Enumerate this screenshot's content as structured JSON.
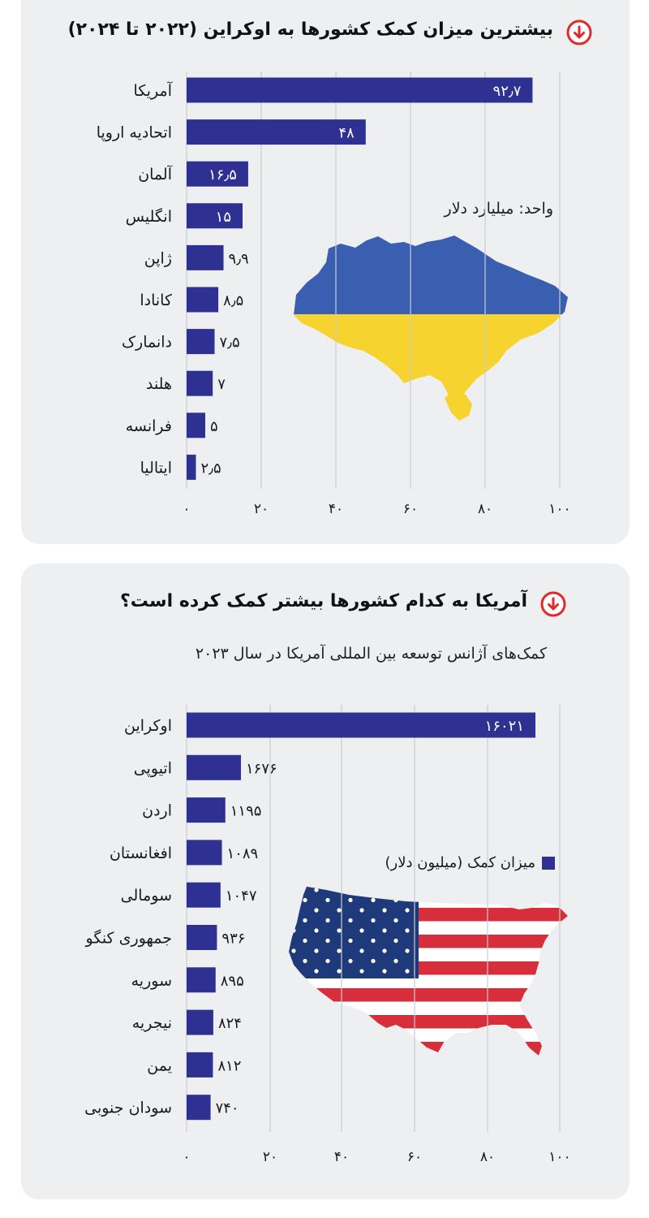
{
  "colors": {
    "bar": "#2e3192",
    "panel": "#eeeff1",
    "grid": "#c9ccd4",
    "accent": "#e02a2a"
  },
  "icons": [
    "arrow-down-circle-icon",
    "ukraine-map-icon",
    "usa-flag-map-icon"
  ],
  "chart_data": [
    {
      "type": "bar",
      "orientation": "horizontal",
      "title": "بیشترین میزان کمک کشورها به اوکراین (۲۰۲۲ تا ۲۰۲۴)",
      "unit_note": "واحد: میلیارد دلار",
      "categories": [
        "آمریکا",
        "اتحادیه اروپا",
        "آلمان",
        "انگلیس",
        "ژاپن",
        "کانادا",
        "دانمارک",
        "هلند",
        "فرانسه",
        "ایتالیا"
      ],
      "values": [
        92.7,
        48,
        16.5,
        15,
        9.9,
        8.5,
        7.5,
        7,
        5,
        2.5
      ],
      "value_labels": [
        "۹۲٫۷",
        "۴۸",
        "۱۶٫۵",
        "۱۵",
        "۹٫۹",
        "۸٫۵",
        "۷٫۵",
        "۷",
        "۵",
        "۲٫۵"
      ],
      "xlim": [
        0,
        100
      ],
      "xticks": [
        0,
        20,
        40,
        60,
        80,
        100
      ],
      "xtick_labels": [
        "۰",
        "۲۰",
        "۴۰",
        "۶۰",
        "۸۰",
        "۱۰۰"
      ],
      "grid": true
    },
    {
      "type": "bar",
      "orientation": "horizontal",
      "title": "آمریکا به کدام کشورها بیشتر کمک کرده است؟",
      "subtitle": "کمک‌های آژانس توسعه بین المللی آمریکا در سال ۲۰۲۳",
      "legend": "میزان کمک (میلیون دلار)",
      "legend_position": "center-right",
      "categories": [
        "اوکراین",
        "اتیوپی",
        "اردن",
        "افغانستان",
        "سومالی",
        "جمهوری کنگو",
        "سوریه",
        "نیجریه",
        "یمن",
        "سودان جنوبی"
      ],
      "values": [
        16021,
        1676,
        1195,
        1089,
        1047,
        936,
        895,
        824,
        812,
        740
      ],
      "value_labels": [
        "۱۶۰۲۱",
        "۱۶۷۶",
        "۱۱۹۵",
        "۱۰۸۹",
        "۱۰۴۷",
        "۹۳۶",
        "۸۹۵",
        "۸۲۴",
        "۸۱۲",
        "۷۴۰"
      ],
      "xtick_labels": [
        "۰",
        "۲۰",
        "۴۰",
        "۶۰",
        "۸۰",
        "۱۰۰"
      ],
      "grid": true
    }
  ]
}
